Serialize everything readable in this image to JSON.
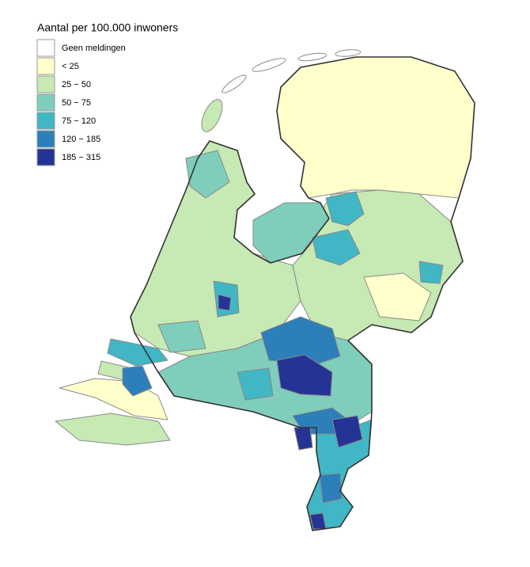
{
  "legend": {
    "title": "Aantal per 100.000 inwoners",
    "items": [
      {
        "label": "Geen meldingen",
        "color": "#ffffff"
      },
      {
        "label": "< 25",
        "color": "#ffffcc"
      },
      {
        "label": "25 − 50",
        "color": "#c7e9b4"
      },
      {
        "label": "50 − 75",
        "color": "#7fcdbb"
      },
      {
        "label": "75 − 120",
        "color": "#41b6c4"
      },
      {
        "label": "120 − 185",
        "color": "#2c7fb8"
      },
      {
        "label": "185 − 315",
        "color": "#253494"
      }
    ]
  }
}
